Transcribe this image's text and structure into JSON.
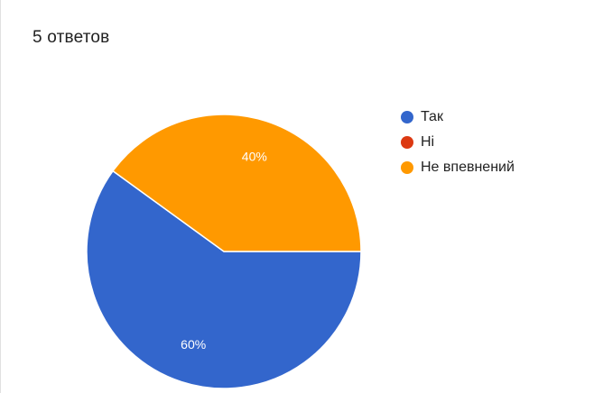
{
  "summary": {
    "responses_text": "5 ответов"
  },
  "chart_data": {
    "type": "pie",
    "categories": [
      "Так",
      "Ні",
      "Не впевнений"
    ],
    "values": [
      60,
      0,
      40
    ],
    "labels": [
      "60%",
      "",
      "40%"
    ],
    "colors": [
      "#3366cc",
      "#dc3912",
      "#ff9900"
    ],
    "label_color": "#ffffff",
    "legend_position": "right"
  }
}
